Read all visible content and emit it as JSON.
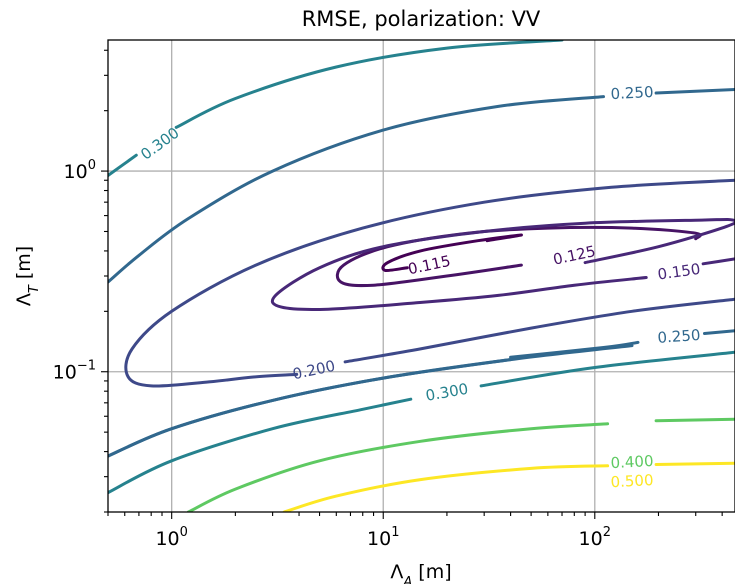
{
  "chart_data": {
    "type": "contour",
    "title": "RMSE, polarization: VV",
    "xlabel": "Λ_A [m]",
    "ylabel": "Λ_T [m]",
    "xscale": "log",
    "yscale": "log",
    "xlim": [
      0.5,
      460
    ],
    "ylim": [
      0.02,
      4.5
    ],
    "grid": true,
    "xticks": [
      {
        "value": 1,
        "base": "10",
        "exp": "0"
      },
      {
        "value": 10,
        "base": "10",
        "exp": "1"
      },
      {
        "value": 100,
        "base": "10",
        "exp": "2"
      }
    ],
    "yticks": [
      {
        "value": 1,
        "base": "10",
        "exp": "0"
      },
      {
        "value": 0.1,
        "base": "10",
        "exp": "−1"
      }
    ],
    "levels": [
      {
        "label": "0.115",
        "color": "#440154",
        "label_at": [
          16.5,
          0.34
        ],
        "paths": [
          [
            [
              31,
              0.45
            ],
            [
              45,
              0.48
            ],
            [
              28,
              0.45
            ],
            [
              15,
              0.4
            ],
            [
              10.5,
              0.35
            ],
            [
              10.2,
              0.32
            ],
            [
              13,
              0.33
            ]
          ]
        ]
      },
      {
        "label": "0.125",
        "color": "#471365",
        "label_at": [
          80,
          0.38
        ],
        "paths": [
          [
            [
              300,
              0.46
            ],
            [
              300,
              0.49
            ],
            [
              150,
              0.52
            ],
            [
              60,
              0.52
            ],
            [
              25,
              0.49
            ],
            [
              10.5,
              0.42
            ],
            [
              6.5,
              0.34
            ],
            [
              6.3,
              0.28
            ],
            [
              9,
              0.27
            ],
            [
              20,
              0.3
            ],
            [
              45,
              0.34
            ]
          ]
        ]
      },
      {
        "label": "0.150",
        "color": "#482878",
        "label_at": [
          250,
          0.315
        ],
        "paths": [
          [
            [
              175,
              0.295
            ],
            [
              80,
              0.27
            ],
            [
              35,
              0.24
            ],
            [
              14,
              0.22
            ],
            [
              5.5,
              0.205
            ],
            [
              3.3,
              0.21
            ],
            [
              3.1,
              0.24
            ],
            [
              5,
              0.33
            ],
            [
              10,
              0.42
            ],
            [
              30,
              0.5
            ],
            [
              90,
              0.55
            ],
            [
              320,
              0.57
            ],
            [
              450,
              0.57
            ],
            [
              420,
              0.53
            ],
            [
              200,
              0.42
            ],
            [
              90,
              0.35
            ]
          ],
          [
            [
              460,
              0.365
            ],
            [
              325,
              0.345
            ]
          ]
        ]
      },
      {
        "label": "0.200",
        "color": "#3e4989",
        "label_at": [
          4.7,
          0.102
        ],
        "paths": [
          [
            [
              3.9,
              0.097
            ],
            [
              2.4,
              0.094
            ],
            [
              1.5,
              0.089
            ],
            [
              0.8,
              0.085
            ],
            [
              0.62,
              0.095
            ],
            [
              0.65,
              0.13
            ],
            [
              1.0,
              0.2
            ],
            [
              2.5,
              0.34
            ],
            [
              8,
              0.52
            ],
            [
              30,
              0.7
            ],
            [
              120,
              0.83
            ],
            [
              460,
              0.9
            ]
          ],
          [
            [
              460,
              0.23
            ],
            [
              150,
              0.2
            ],
            [
              50,
              0.165
            ],
            [
              15,
              0.13
            ],
            [
              6.6,
              0.112
            ]
          ]
        ]
      },
      {
        "label": "0.250",
        "color": "#31688e",
        "label_at": [
          150,
          2.45
        ],
        "paths": [
          [
            [
              0.5,
              0.28
            ],
            [
              0.7,
              0.38
            ],
            [
              1.2,
              0.58
            ],
            [
              3,
              1.0
            ],
            [
              10,
              1.6
            ],
            [
              35,
              2.1
            ],
            [
              110,
              2.35
            ]
          ],
          [
            [
              195,
              2.45
            ],
            [
              460,
              2.55
            ]
          ],
          [
            [
              0.5,
              0.038
            ],
            [
              1,
              0.052
            ],
            [
              3,
              0.072
            ],
            [
              10,
              0.093
            ],
            [
              40,
              0.115
            ],
            [
              150,
              0.135
            ]
          ],
          [
            [
              0.5,
              0.038
            ],
            [
              1,
              0.052
            ],
            [
              3,
              0.072
            ],
            [
              10,
              0.093
            ],
            [
              40,
              0.115
            ]
          ]
        ]
      },
      {
        "label": "0.250",
        "color": "#31688e",
        "label_at": [
          250,
          0.15
        ],
        "paths": [
          [
            [
              40,
              0.118
            ],
            [
              110,
              0.132
            ],
            [
              160,
              0.14
            ]
          ],
          [
            [
              330,
              0.155
            ],
            [
              460,
              0.16
            ]
          ]
        ]
      },
      {
        "label": "0.300",
        "color": "#26828e",
        "label_at": [
          0.88,
          1.37
        ],
        "paths": [
          [
            [
              0.5,
              0.95
            ],
            [
              0.68,
              1.2
            ]
          ],
          [
            [
              1.05,
              1.65
            ],
            [
              2,
              2.3
            ],
            [
              6,
              3.3
            ],
            [
              20,
              4.1
            ],
            [
              70,
              4.5
            ]
          ],
          [
            [
              0.5,
              0.025
            ],
            [
              1,
              0.036
            ],
            [
              3,
              0.052
            ],
            [
              8,
              0.065
            ],
            [
              13.5,
              0.073
            ]
          ],
          [
            [
              29,
              0.085
            ],
            [
              100,
              0.105
            ],
            [
              460,
              0.125
            ]
          ]
        ]
      },
      {
        "label": "0.300",
        "color": "#26828e",
        "label_at": [
          20,
          0.079
        ],
        "paths": []
      },
      {
        "label": "0.400",
        "color": "#5ec962",
        "label_at": [
          150,
          0.0355
        ],
        "paths": [
          [
            [
              1.2,
              0.02
            ],
            [
              2,
              0.026
            ],
            [
              5,
              0.036
            ],
            [
              15,
              0.045
            ],
            [
              50,
              0.052
            ],
            [
              115,
              0.055
            ]
          ],
          [
            [
              195,
              0.057
            ],
            [
              460,
              0.058
            ]
          ]
        ]
      },
      {
        "label": "0.500",
        "color": "#fde725",
        "label_at": [
          150,
          0.0285
        ],
        "paths": [
          [
            [
              3.4,
              0.02
            ],
            [
              6,
              0.024
            ],
            [
              15,
              0.029
            ],
            [
              50,
              0.033
            ],
            [
              115,
              0.034
            ]
          ],
          [
            [
              195,
              0.0345
            ],
            [
              460,
              0.035
            ]
          ]
        ]
      }
    ]
  }
}
